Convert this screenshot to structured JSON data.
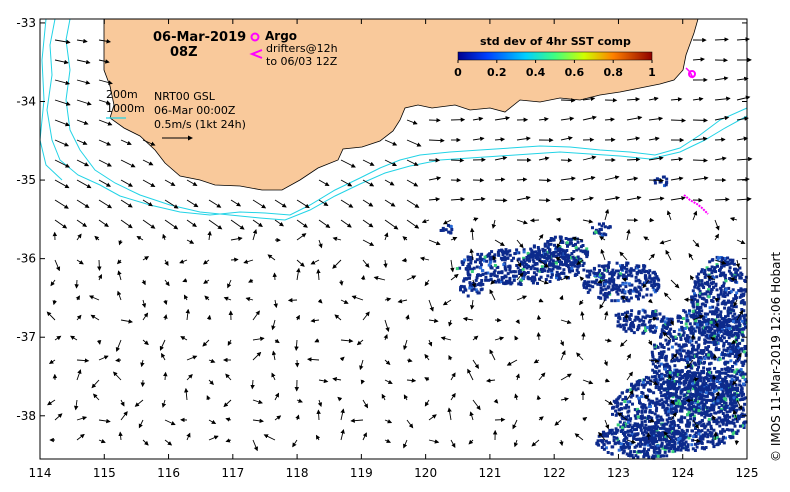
{
  "map": {
    "date": "06-Mar-2019",
    "hour": "08Z",
    "lon_ticks": [
      "114",
      "115",
      "116",
      "117",
      "118",
      "119",
      "120",
      "121",
      "122",
      "123",
      "124",
      "125"
    ],
    "lat_ticks": [
      "-33",
      "-34",
      "-35",
      "-36",
      "-37",
      "-38"
    ],
    "lon_range": [
      114,
      125
    ],
    "lat_range": [
      -38.55,
      -32.95
    ],
    "contours": {
      "shallow": "200m",
      "deep": "1000m"
    },
    "model_label": "NRT00 GSL",
    "model_time": "06-Mar 00:00Z",
    "vector_scale": "0.5m/s (1kt 24h)",
    "land_color": "#f9c99b",
    "contour_color": "#22d3e6",
    "sst_color": "#0c2a8c"
  },
  "legend": {
    "argo_label": "Argo",
    "argo_color": "#ff00ff",
    "drifters_label": "drifters@12h",
    "drifters_sub": "to 06/03 12Z",
    "colorbar_title": "std dev of 4hr SST comp",
    "colorbar_ticks": [
      "0",
      "0.2",
      "0.4",
      "0.6",
      "0.8",
      "1"
    ]
  },
  "credit": "© IMOS 11-Mar-2019 12:06 Hobart"
}
